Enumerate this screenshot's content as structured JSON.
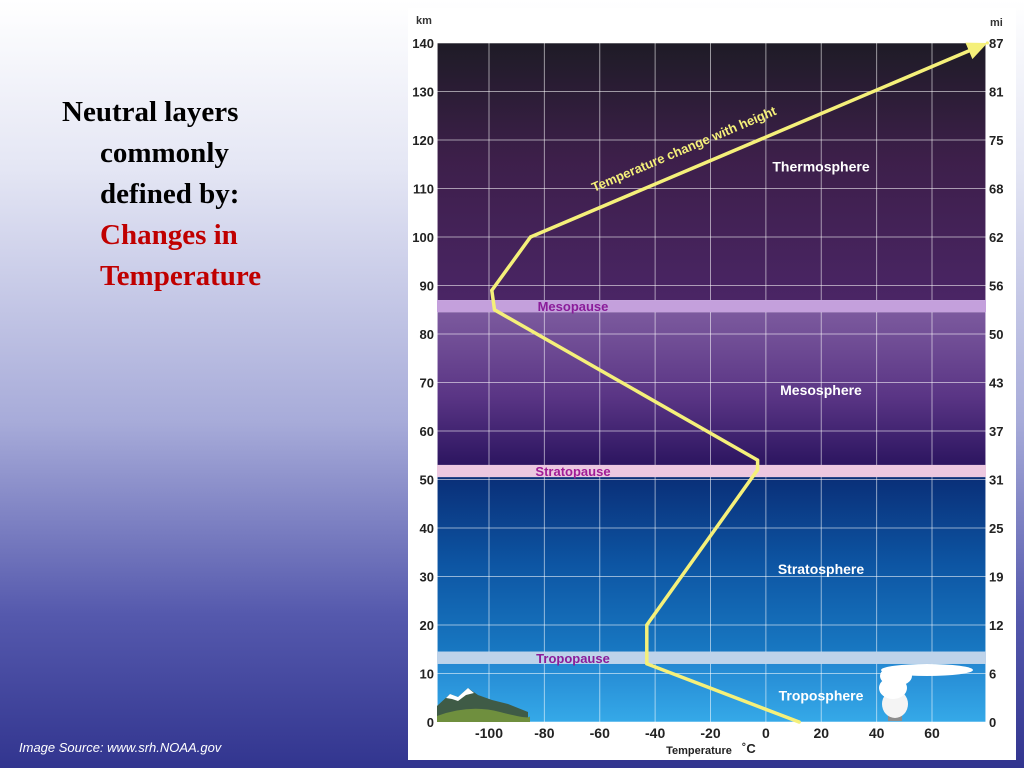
{
  "slide": {
    "bullet_line1": "Neutral layers",
    "bullet_line2": "commonly",
    "bullet_line3": "defined by:",
    "bullet_highlight1": "Changes in",
    "bullet_highlight2": "Temperature",
    "source_note": "Image Source: www.srh.NOAA.gov",
    "colors": {
      "text": "#000000",
      "highlight": "#c00000",
      "source": "#ffffff"
    }
  },
  "chart_data": {
    "type": "line",
    "title": "",
    "xlabel": "Temperature",
    "xunit": "˚C",
    "ylabel_left": "km",
    "ylabel_right": "mi",
    "xlim": [
      -120,
      80
    ],
    "ylim": [
      0,
      140
    ],
    "grid": true,
    "x_ticks": [
      -100,
      -80,
      -60,
      -40,
      -20,
      0,
      20,
      40,
      60
    ],
    "y_ticks_km": [
      0,
      10,
      20,
      30,
      40,
      50,
      60,
      70,
      80,
      90,
      100,
      110,
      120,
      130,
      140
    ],
    "y_ticks_mi": [
      "0",
      "6",
      "12",
      "19",
      "25",
      "31",
      "37",
      "43",
      "50",
      "56",
      "62",
      "68",
      "75",
      "81",
      "87"
    ],
    "series": [
      {
        "name": "Temperature change with height",
        "color": "#f5f07a",
        "points": [
          [
            12,
            0
          ],
          [
            -43,
            12
          ],
          [
            -43,
            20
          ],
          [
            -3,
            52
          ],
          [
            -3,
            54
          ],
          [
            -98,
            85
          ],
          [
            -99,
            89
          ],
          [
            -85,
            100
          ],
          [
            80,
            140
          ]
        ]
      }
    ],
    "layers": [
      {
        "name": "Troposphere",
        "label_y": 5.5
      },
      {
        "name": "Stratosphere",
        "label_y": 31.5
      },
      {
        "name": "Mesosphere",
        "label_y": 68.5
      },
      {
        "name": "Thermosphere",
        "label_y": 114.5
      }
    ],
    "boundaries": [
      {
        "name": "Tropopause",
        "bottom": 12,
        "top": 14.5,
        "color": "#bed3ea",
        "label_color": "#8a1c9a"
      },
      {
        "name": "Stratopause",
        "bottom": 50.5,
        "top": 53,
        "color": "#ecc8e0",
        "label_color": "#a11d96"
      },
      {
        "name": "Mesopause",
        "bottom": 84.5,
        "top": 87,
        "color": "#c4a0dc",
        "label_color": "#8a1c9a"
      }
    ],
    "band_colors": {
      "troposphere": "#2d9ee0",
      "stratosphere": "#0d4c9a",
      "mesosphere": "#55307f",
      "thermosphere": "#21192b"
    }
  }
}
